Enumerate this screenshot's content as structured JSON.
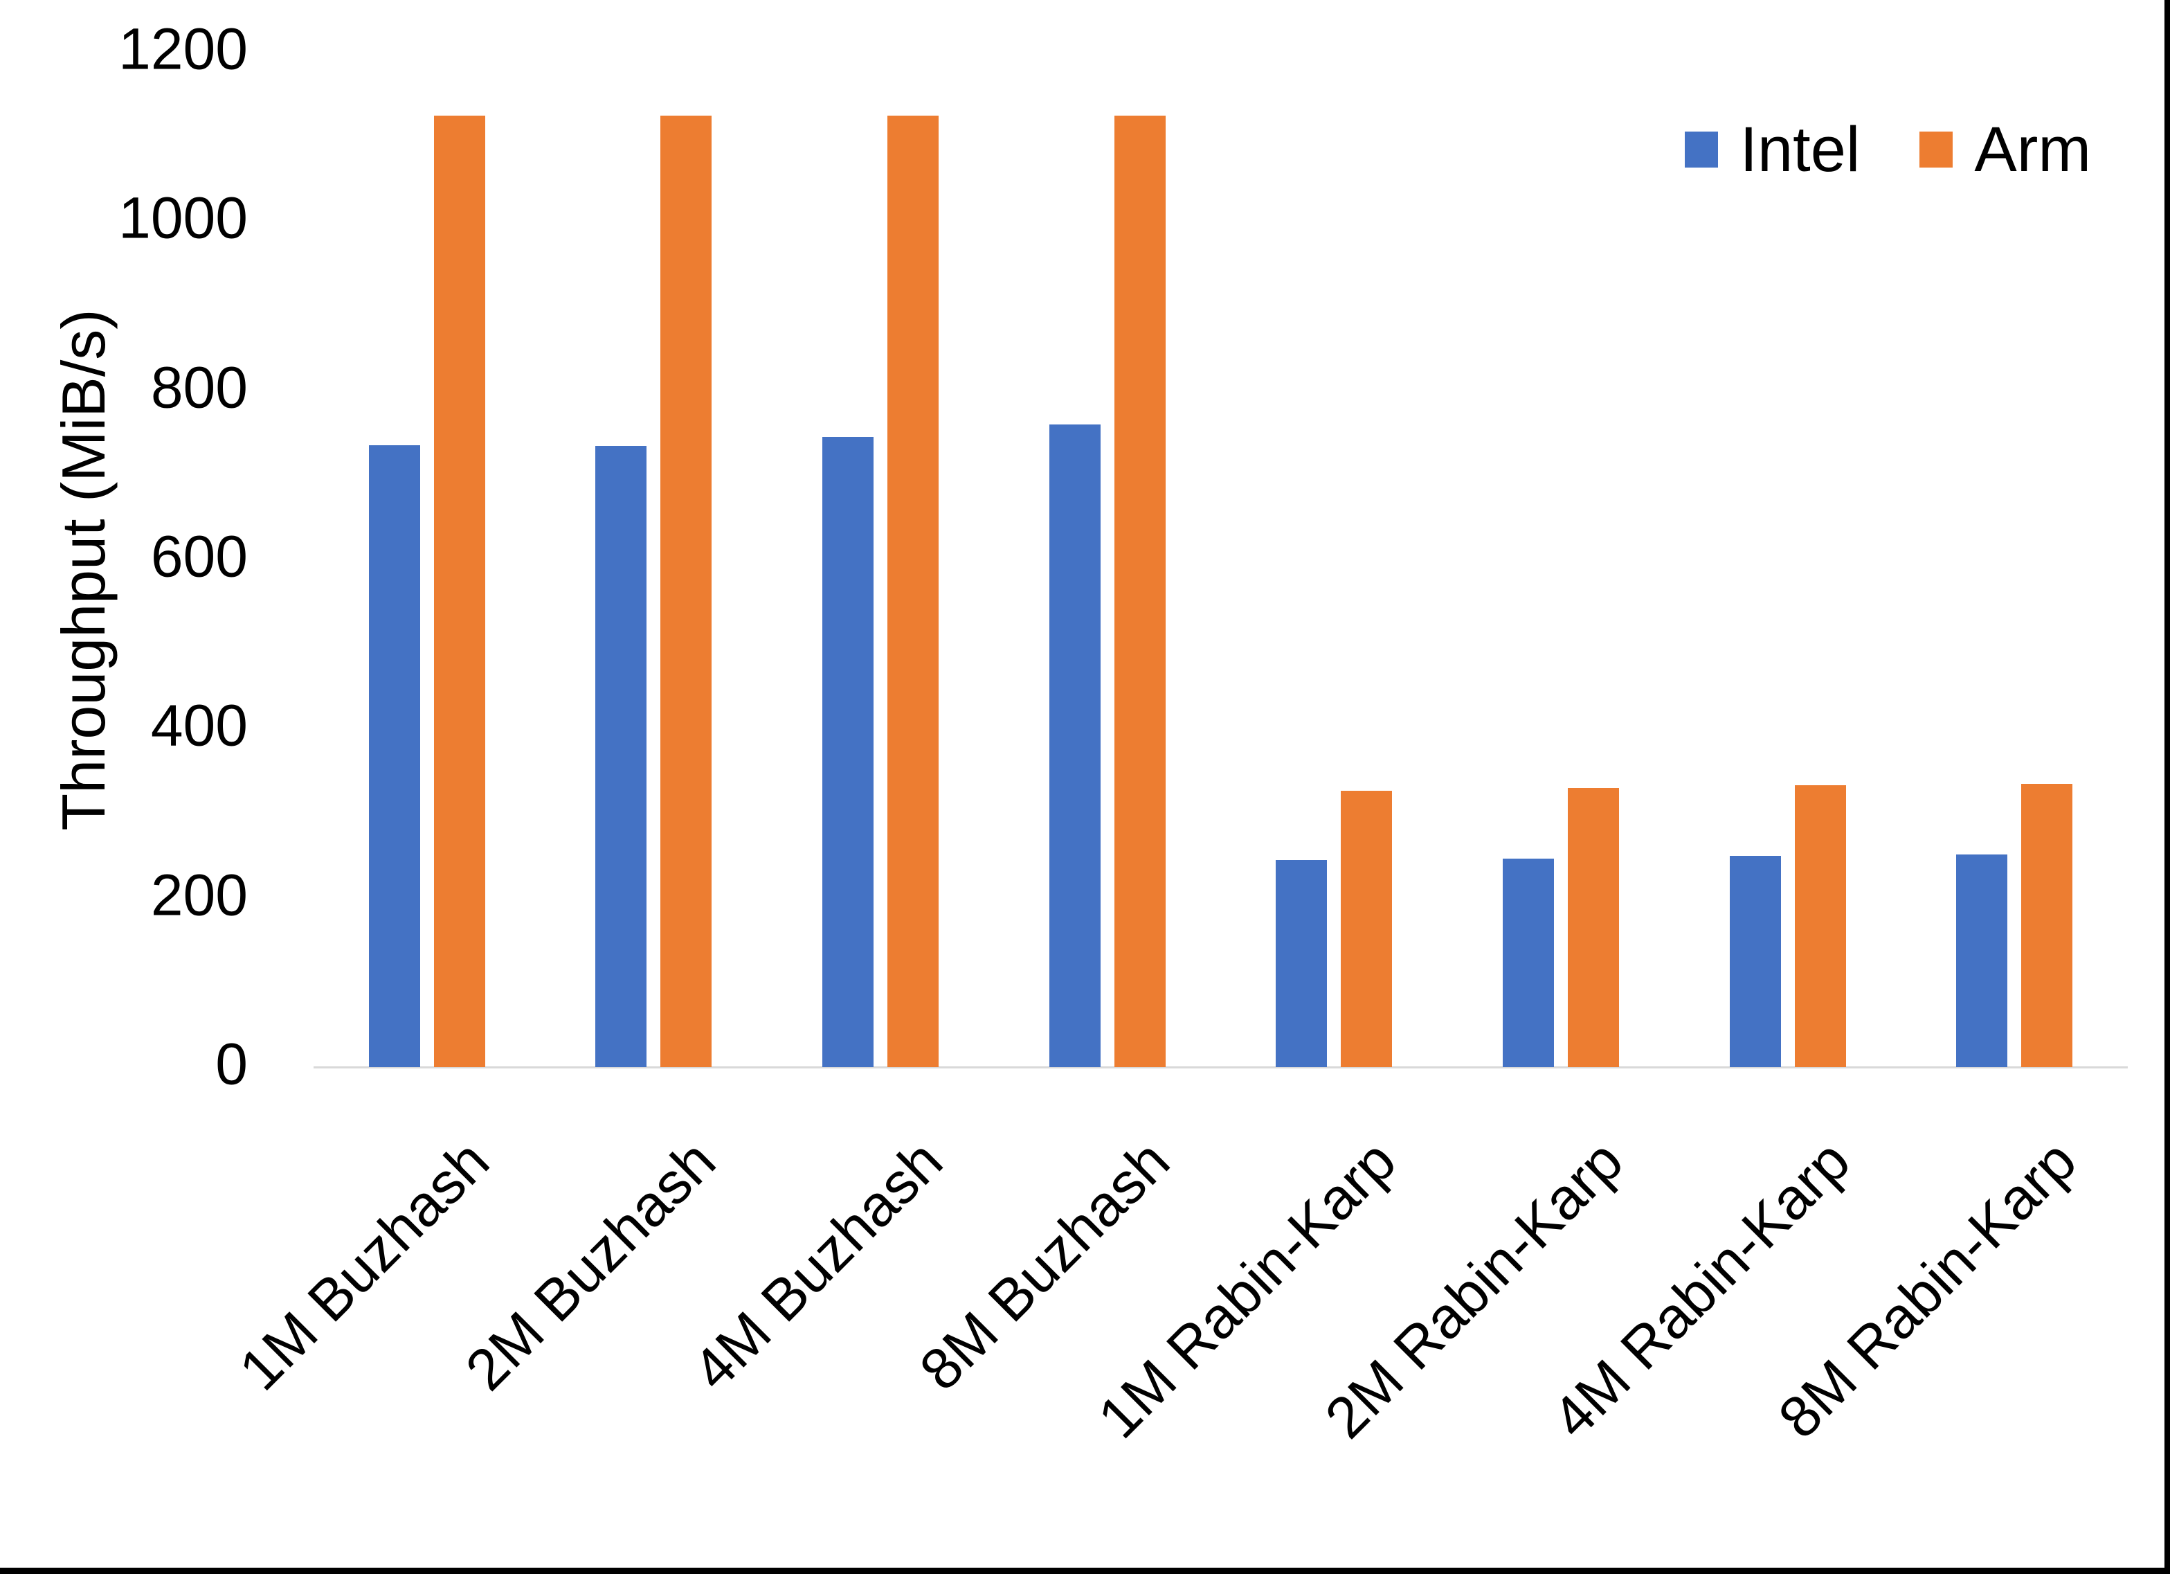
{
  "chart_data": {
    "type": "bar",
    "title": "",
    "ylabel": "Throughput (MiB/s)",
    "xlabel": "",
    "ylim": [
      0,
      1200
    ],
    "yticks": [
      0,
      200,
      400,
      600,
      800,
      1000,
      1200
    ],
    "grid": false,
    "legend_position": "top-right",
    "categories": [
      "1M Buzhash",
      "2M Buzhash",
      "4M Buzhash",
      "8M Buzhash",
      "1M Rabin-Karp",
      "2M Rabin-Karp",
      "4M Rabin-Karp",
      "8M Rabin-Karp"
    ],
    "series": [
      {
        "name": "Intel",
        "color": "#4472C4",
        "values": [
          735,
          734,
          745,
          760,
          245,
          246,
          250,
          251
        ]
      },
      {
        "name": "Arm",
        "color": "#ED7D31",
        "values": [
          1125,
          1125,
          1125,
          1125,
          327,
          330,
          333,
          335
        ]
      }
    ]
  },
  "page": {
    "background": "#FFFFFF",
    "axis_color": "#D9D9D9",
    "edge_color": "#000000"
  }
}
